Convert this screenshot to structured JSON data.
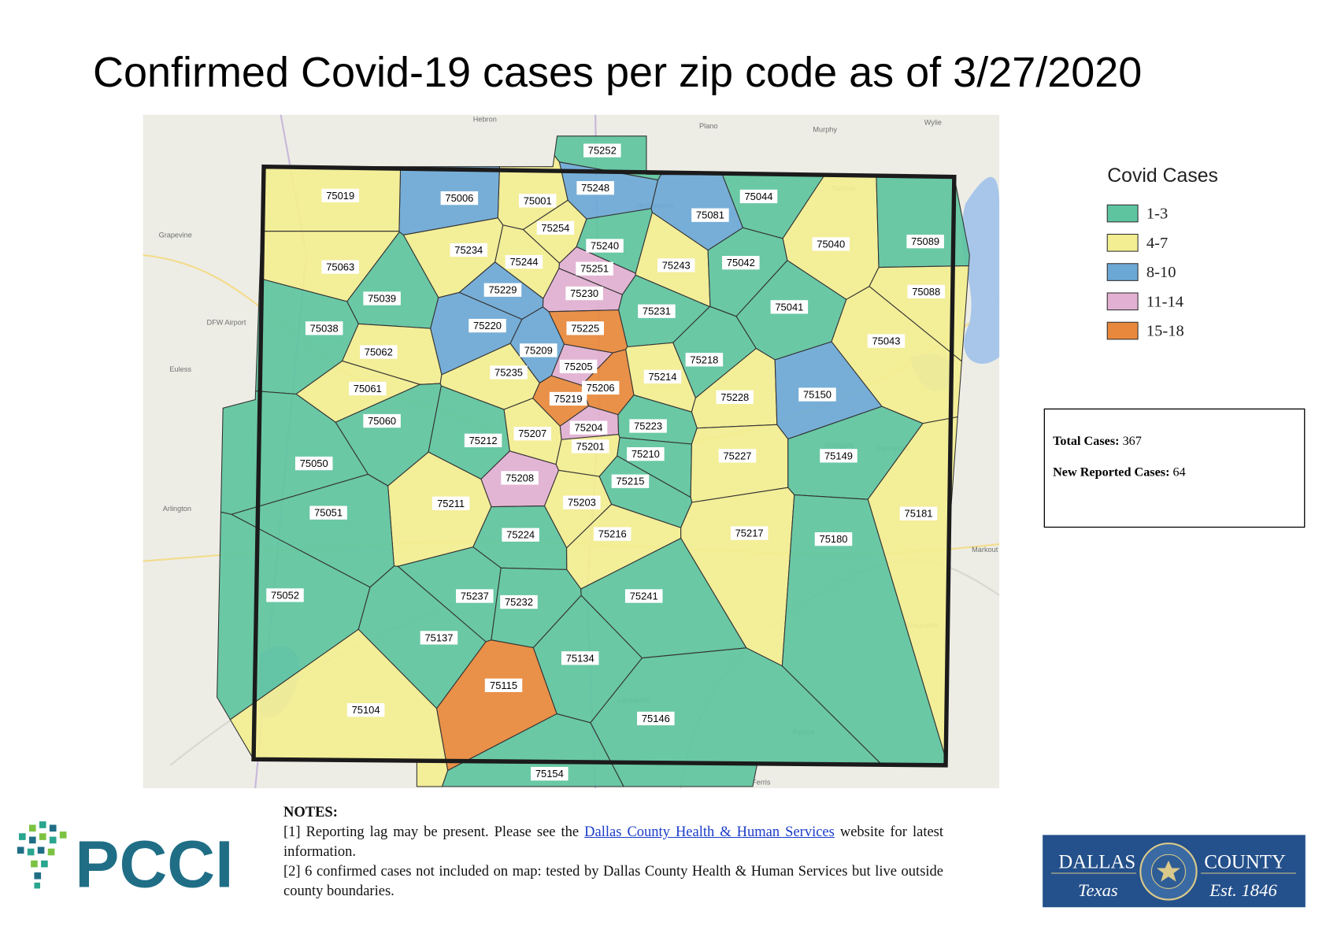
{
  "title": "Confirmed Covid-19 cases per zip code as of 3/27/2020",
  "legend": {
    "title": "Covid Cases",
    "items": [
      {
        "label": "1-3",
        "color": "#5ec4a0"
      },
      {
        "label": "4-7",
        "color": "#f3ee91"
      },
      {
        "label": "8-10",
        "color": "#6ca8d6"
      },
      {
        "label": "11-14",
        "color": "#e2b0d2"
      },
      {
        "label": "15-18",
        "color": "#e8883c"
      }
    ]
  },
  "zips": [
    {
      "zip": "75252",
      "color": "#5ec4a0"
    },
    {
      "zip": "75248",
      "color": "#6ca8d6"
    },
    {
      "zip": "75001",
      "color": "#f3ee91"
    },
    {
      "zip": "75006",
      "color": "#6ca8d6"
    },
    {
      "zip": "75019",
      "color": "#f3ee91"
    },
    {
      "zip": "75081",
      "color": "#6ca8d6"
    },
    {
      "zip": "75044",
      "color": "#5ec4a0"
    },
    {
      "zip": "75254",
      "color": "#f3ee91"
    },
    {
      "zip": "75040",
      "color": "#f3ee91"
    },
    {
      "zip": "75089",
      "color": "#5ec4a0"
    },
    {
      "zip": "75234",
      "color": "#f3ee91"
    },
    {
      "zip": "75240",
      "color": "#5ec4a0"
    },
    {
      "zip": "75244",
      "color": "#f3ee91"
    },
    {
      "zip": "75063",
      "color": "#f3ee91"
    },
    {
      "zip": "75251",
      "color": "#e2b0d2"
    },
    {
      "zip": "75243",
      "color": "#f3ee91"
    },
    {
      "zip": "75042",
      "color": "#5ec4a0"
    },
    {
      "zip": "75088",
      "color": "#f3ee91"
    },
    {
      "zip": "75229",
      "color": "#6ca8d6"
    },
    {
      "zip": "75230",
      "color": "#e2b0d2"
    },
    {
      "zip": "75039",
      "color": "#5ec4a0"
    },
    {
      "zip": "75041",
      "color": "#5ec4a0"
    },
    {
      "zip": "75231",
      "color": "#5ec4a0"
    },
    {
      "zip": "75038",
      "color": "#5ec4a0"
    },
    {
      "zip": "75220",
      "color": "#6ca8d6"
    },
    {
      "zip": "75225",
      "color": "#e8883c"
    },
    {
      "zip": "75043",
      "color": "#f3ee91"
    },
    {
      "zip": "75062",
      "color": "#f3ee91"
    },
    {
      "zip": "75209",
      "color": "#6ca8d6"
    },
    {
      "zip": "75218",
      "color": "#5ec4a0"
    },
    {
      "zip": "75235",
      "color": "#f3ee91"
    },
    {
      "zip": "75205",
      "color": "#e2b0d2"
    },
    {
      "zip": "75214",
      "color": "#f3ee91"
    },
    {
      "zip": "75061",
      "color": "#f3ee91"
    },
    {
      "zip": "75206",
      "color": "#e8883c"
    },
    {
      "zip": "75219",
      "color": "#e8883c"
    },
    {
      "zip": "75228",
      "color": "#f3ee91"
    },
    {
      "zip": "75150",
      "color": "#6ca8d6"
    },
    {
      "zip": "75060",
      "color": "#5ec4a0"
    },
    {
      "zip": "75204",
      "color": "#e2b0d2"
    },
    {
      "zip": "75223",
      "color": "#5ec4a0"
    },
    {
      "zip": "75212",
      "color": "#5ec4a0"
    },
    {
      "zip": "75207",
      "color": "#f3ee91"
    },
    {
      "zip": "75201",
      "color": "#f3ee91"
    },
    {
      "zip": "75210",
      "color": "#5ec4a0"
    },
    {
      "zip": "75227",
      "color": "#f3ee91"
    },
    {
      "zip": "75149",
      "color": "#5ec4a0"
    },
    {
      "zip": "75050",
      "color": "#5ec4a0"
    },
    {
      "zip": "75208",
      "color": "#e2b0d2"
    },
    {
      "zip": "75215",
      "color": "#5ec4a0"
    },
    {
      "zip": "75211",
      "color": "#f3ee91"
    },
    {
      "zip": "75203",
      "color": "#f3ee91"
    },
    {
      "zip": "75181",
      "color": "#f3ee91"
    },
    {
      "zip": "75051",
      "color": "#5ec4a0"
    },
    {
      "zip": "75224",
      "color": "#5ec4a0"
    },
    {
      "zip": "75216",
      "color": "#f3ee91"
    },
    {
      "zip": "75217",
      "color": "#f3ee91"
    },
    {
      "zip": "75180",
      "color": "#5ec4a0"
    },
    {
      "zip": "75052",
      "color": "#5ec4a0"
    },
    {
      "zip": "75237",
      "color": "#5ec4a0"
    },
    {
      "zip": "75232",
      "color": "#5ec4a0"
    },
    {
      "zip": "75241",
      "color": "#5ec4a0"
    },
    {
      "zip": "75137",
      "color": "#5ec4a0"
    },
    {
      "zip": "75134",
      "color": "#5ec4a0"
    },
    {
      "zip": "75115",
      "color": "#e8883c"
    },
    {
      "zip": "75104",
      "color": "#f3ee91"
    },
    {
      "zip": "75146",
      "color": "#5ec4a0"
    },
    {
      "zip": "75154",
      "color": "#5ec4a0"
    }
  ],
  "basemap_labels": [
    "Hebron",
    "Plano",
    "Murphy",
    "Wylie",
    "Grapevine",
    "DFW Airport",
    "Euless",
    "Arlington",
    "Sachse",
    "Richardson",
    "Mesquite",
    "Sunnyvale",
    "Seagoville",
    "Lancaster",
    "Ferris",
    "Patrick",
    "Markout"
  ],
  "summary": {
    "total_label": "Total Cases:",
    "total": 367,
    "new_label": "New Reported Cases:",
    "new": 64
  },
  "notes": {
    "heading": "NOTES:",
    "note1_before": "[1] Reporting lag may be present. Please see the ",
    "note1_link": "Dallas County Health & Human Services",
    "note1_after": " website for latest information.",
    "note2": "[2] 6 confirmed cases not included on map: tested by Dallas County Health & Human Services but live outside county boundaries."
  },
  "logos": {
    "pcci": "PCCI",
    "county_left": "DALLAS",
    "county_right": "COUNTY",
    "county_state": "Texas",
    "county_est": "Est. 1846"
  }
}
